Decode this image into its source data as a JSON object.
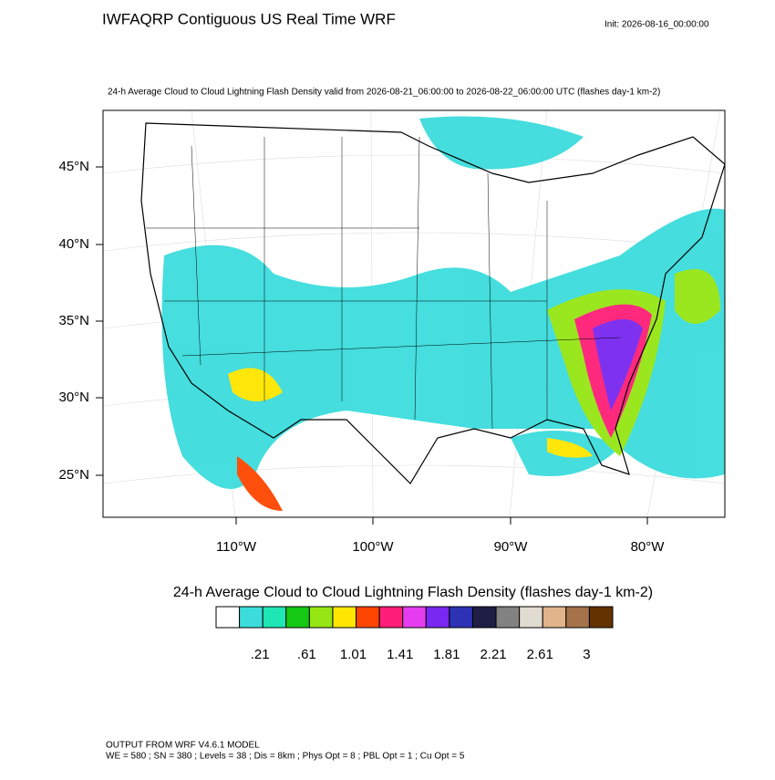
{
  "header": {
    "title": "IWFAQRP Contiguous US Real Time WRF",
    "init": "Init: 2026-08-16_00:00:00",
    "subtitle": "24-h Average Cloud to Cloud Lightning Flash Density valid from 2026-08-21_06:00:00 to 2026-08-22_06:00:00 UTC   (flashes day-1 km-2)"
  },
  "map": {
    "lat_labels": [
      "45°N",
      "40°N",
      "35°N",
      "30°N",
      "25°N"
    ],
    "lon_labels": [
      "110°W",
      "100°W",
      "90°W",
      "80°W"
    ]
  },
  "colorbar": {
    "title": "24-h Average Cloud to Cloud Lightning Flash Density  (flashes day-1 km-2)",
    "colors": [
      "#ffffff",
      "#3cdcdc",
      "#1ee6b4",
      "#14c814",
      "#96e614",
      "#ffe600",
      "#ff4600",
      "#ff1e78",
      "#e63cf0",
      "#7828f0",
      "#2d32b4",
      "#1e1e46",
      "#828282",
      "#e1dcd2",
      "#e1b48c",
      "#a5724a",
      "#643200"
    ],
    "labels": [
      ".21",
      ".61",
      "1.01",
      "1.41",
      "1.81",
      "2.21",
      "2.61",
      "3"
    ]
  },
  "footer": {
    "line1": "OUTPUT FROM WRF V4.6.1 MODEL",
    "line2": "WE = 580 ; SN = 380 ; Levels = 38 ; Dis = 8km ; Phys Opt = 8 ; PBL Opt = 1 ; Cu Opt = 5"
  }
}
